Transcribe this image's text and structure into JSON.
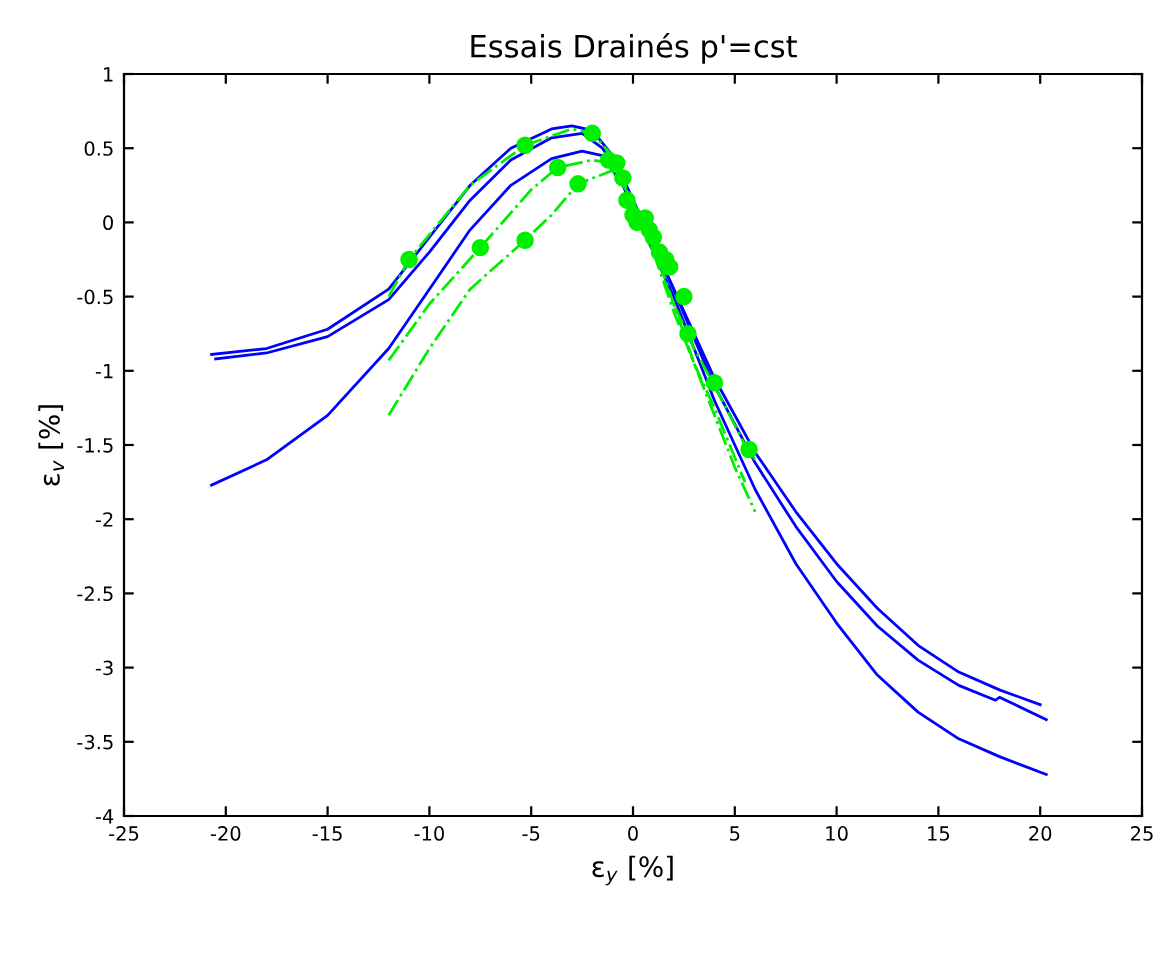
{
  "chart_data": {
    "type": "line",
    "title": "Essais Drainés p'=cst",
    "xlabel": "ε$_{y}$ [%]",
    "ylabel": "ε$_{v}$ [%]",
    "xlim": [
      -25,
      25
    ],
    "xticks": [
      -25,
      -20,
      -15,
      -10,
      -5,
      0,
      5,
      10,
      15,
      20,
      25
    ],
    "ylim": [
      -4,
      1
    ],
    "yticks": [
      -4,
      -3.5,
      -3,
      -2.5,
      -2,
      -1.5,
      -1,
      -0.5,
      0,
      0.5,
      1
    ],
    "grid": false,
    "legend": false,
    "series": [
      {
        "color": "#0000ff",
        "line_style": "solid",
        "x": [
          -20.7,
          -18,
          -15,
          -12,
          -10,
          -8,
          -6,
          -4,
          -3,
          -2,
          -1,
          0,
          1,
          2,
          3,
          4,
          6,
          8,
          10,
          12,
          14,
          16,
          18,
          20
        ],
        "values": [
          -0.89,
          -0.85,
          -0.72,
          -0.45,
          -0.1,
          0.25,
          0.5,
          0.63,
          0.65,
          0.62,
          0.45,
          0.15,
          -0.15,
          -0.45,
          -0.75,
          -1.05,
          -1.55,
          -1.95,
          -2.3,
          -2.6,
          -2.85,
          -3.03,
          -3.15,
          -3.25
        ]
      },
      {
        "color": "#0000ff",
        "line_style": "solid",
        "x": [
          -20.5,
          -18,
          -15,
          -12,
          -10,
          -8,
          -6,
          -4,
          -2.5,
          -1.5,
          -0.5,
          0.5,
          2,
          3,
          4,
          6,
          8,
          10,
          12,
          14,
          16,
          17.8,
          18,
          20.3
        ],
        "values": [
          -0.92,
          -0.88,
          -0.77,
          -0.52,
          -0.2,
          0.15,
          0.42,
          0.57,
          0.6,
          0.5,
          0.3,
          0.0,
          -0.45,
          -0.78,
          -1.1,
          -1.62,
          -2.05,
          -2.42,
          -2.72,
          -2.95,
          -3.12,
          -3.22,
          -3.2,
          -3.35
        ]
      },
      {
        "color": "#0000ff",
        "line_style": "solid",
        "x": [
          -20.7,
          -18,
          -15,
          -12,
          -10,
          -8,
          -6,
          -4,
          -2.5,
          -1.5,
          -0.5,
          0.5,
          2,
          3,
          4,
          6,
          8,
          10,
          12,
          14,
          16,
          18,
          20.3
        ],
        "values": [
          -1.77,
          -1.6,
          -1.3,
          -0.85,
          -0.45,
          -0.05,
          0.25,
          0.43,
          0.48,
          0.45,
          0.25,
          -0.05,
          -0.5,
          -0.85,
          -1.2,
          -1.8,
          -2.3,
          -2.7,
          -3.05,
          -3.3,
          -3.48,
          -3.6,
          -3.72
        ]
      },
      {
        "color": "#00ee00",
        "line_style": "dashdot",
        "x": [
          -12,
          -11,
          -8,
          -5.3,
          -3,
          -2,
          -1,
          0,
          1,
          2,
          3,
          4,
          5.5,
          6
        ],
        "values": [
          -0.5,
          -0.25,
          0.25,
          0.52,
          0.63,
          0.6,
          0.45,
          0.1,
          -0.2,
          -0.55,
          -0.85,
          -1.1,
          -1.5,
          -1.6
        ]
      },
      {
        "color": "#00ee00",
        "line_style": "dashdot",
        "x": [
          -12,
          -10,
          -7.5,
          -5,
          -3.7,
          -2,
          -1,
          0,
          1,
          2,
          3,
          4,
          5.5
        ],
        "values": [
          -0.93,
          -0.55,
          -0.17,
          0.22,
          0.37,
          0.42,
          0.4,
          0.15,
          -0.2,
          -0.6,
          -0.95,
          -1.25,
          -1.75
        ]
      },
      {
        "color": "#00ee00",
        "line_style": "dashdot",
        "x": [
          -12,
          -10,
          -8,
          -5.3,
          -4,
          -2.7,
          -1,
          0,
          1,
          2,
          3,
          4,
          5,
          6
        ],
        "values": [
          -1.3,
          -0.85,
          -0.45,
          -0.12,
          0.05,
          0.26,
          0.35,
          0.15,
          -0.15,
          -0.55,
          -0.95,
          -1.3,
          -1.65,
          -1.95
        ]
      },
      {
        "type": "scatter",
        "color": "#00ee00",
        "marker": "circle",
        "x": [
          -11,
          -5.3,
          -7.5,
          -3.7,
          -5.3,
          -2.7,
          -2,
          -1.2,
          -0.8,
          -0.5,
          -0.3,
          0,
          0.2,
          0.6,
          0.8,
          1,
          1.3,
          1.6,
          1.8,
          2.5,
          2.7,
          4,
          5.7
        ],
        "values": [
          -0.25,
          0.52,
          -0.17,
          0.37,
          -0.12,
          0.26,
          0.6,
          0.42,
          0.4,
          0.3,
          0.15,
          0.05,
          0.0,
          0.03,
          -0.05,
          -0.1,
          -0.2,
          -0.25,
          -0.3,
          -0.5,
          -0.75,
          -1.08,
          -1.53
        ]
      }
    ]
  }
}
